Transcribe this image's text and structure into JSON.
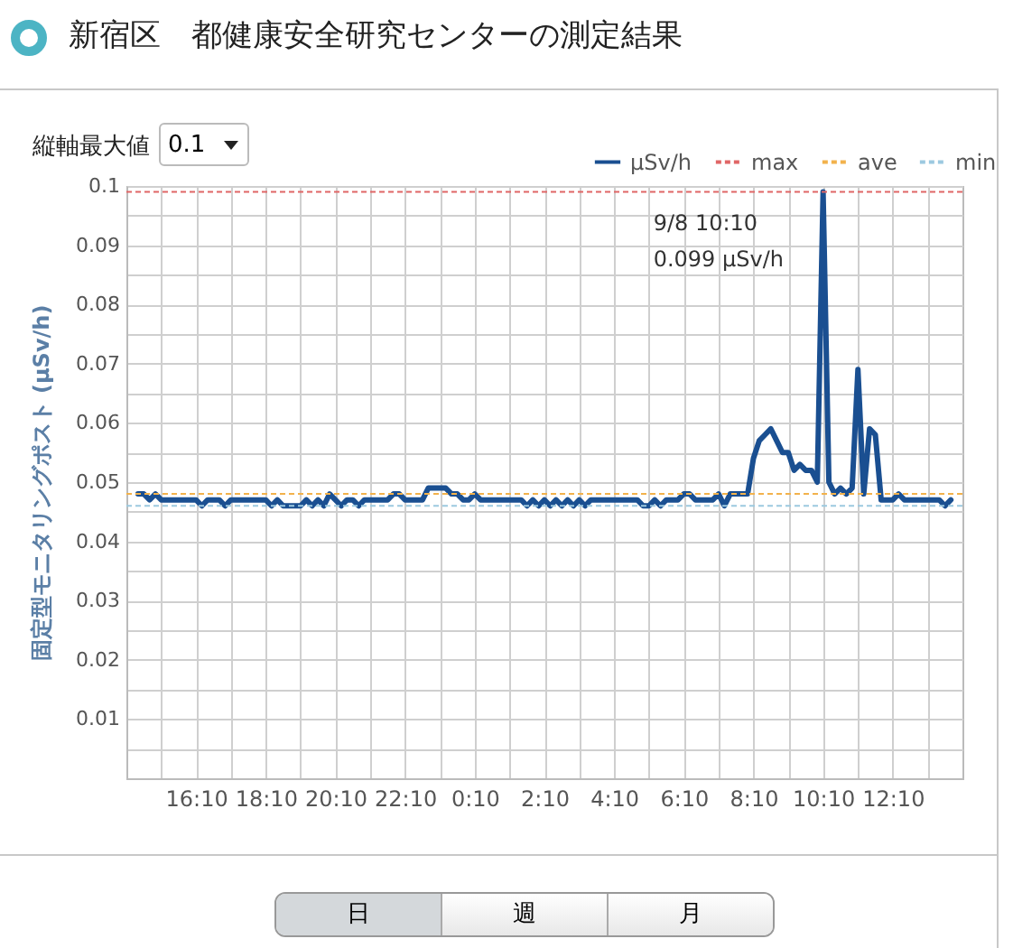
{
  "chart_data": {
    "type": "line",
    "title": "新宿区　都健康安全研究センターの測定結果",
    "ylabel": "固定型モニタリングポスト (μSv/h)",
    "x": [
      "--09-07T14:30",
      "--09-07T14:40",
      "--09-07T14:50",
      "--09-07T15:00",
      "--09-07T15:10",
      "--09-07T16:10",
      "--09-07T16:20",
      "--09-07T16:30",
      "--09-07T16:50",
      "--09-07T17:00",
      "--09-07T17:10",
      "--09-07T18:10",
      "--09-07T18:20",
      "--09-07T18:30",
      "--09-07T18:40",
      "--09-07T19:10",
      "--09-07T19:20",
      "--09-07T19:30",
      "--09-07T19:40",
      "--09-07T19:50",
      "--09-07T20:00",
      "--09-07T20:10",
      "--09-07T20:20",
      "--09-07T20:30",
      "--09-07T20:40",
      "--09-07T20:50",
      "--09-07T21:00",
      "--09-07T21:40",
      "--09-07T21:50",
      "--09-07T22:00",
      "--09-07T22:10",
      "--09-07T22:40",
      "--09-07T22:50",
      "--09-07T23:20",
      "--09-07T23:30",
      "--09-07T23:40",
      "--09-07T23:50",
      "--09-08T00:00",
      "--09-08T00:10",
      "--09-08T00:20",
      "--09-08T01:30",
      "--09-08T01:40",
      "--09-08T01:50",
      "--09-08T02:00",
      "--09-08T02:10",
      "--09-08T02:20",
      "--09-08T02:30",
      "--09-08T02:40",
      "--09-08T02:50",
      "--09-08T03:00",
      "--09-08T03:10",
      "--09-08T03:20",
      "--09-08T03:30",
      "--09-08T04:50",
      "--09-08T05:00",
      "--09-08T05:10",
      "--09-08T05:20",
      "--09-08T05:30",
      "--09-08T05:40",
      "--09-08T06:00",
      "--09-08T06:10",
      "--09-08T06:20",
      "--09-08T06:30",
      "--09-08T07:00",
      "--09-08T07:10",
      "--09-08T07:20",
      "--09-08T07:30",
      "--09-08T08:00",
      "--09-08T08:10",
      "--09-08T08:20",
      "--09-08T08:30",
      "--09-08T08:40",
      "--09-08T08:50",
      "--09-08T09:00",
      "--09-08T09:10",
      "--09-08T09:20",
      "--09-08T09:30",
      "--09-08T09:40",
      "--09-08T09:50",
      "--09-08T10:00",
      "--09-08T10:10",
      "--09-08T10:20",
      "--09-08T10:30",
      "--09-08T10:40",
      "--09-08T10:50",
      "--09-08T11:00",
      "--09-08T11:10",
      "--09-08T11:20",
      "--09-08T11:30",
      "--09-08T11:40",
      "--09-08T11:50",
      "--09-08T12:10",
      "--09-08T12:20",
      "--09-08T12:30",
      "--09-08T13:30",
      "--09-08T13:40",
      "--09-08T13:50"
    ],
    "series": [
      {
        "name": "μSv/h",
        "color": "#1a4f91",
        "values": [
          0.048,
          0.048,
          0.047,
          0.048,
          0.047,
          0.047,
          0.046,
          0.047,
          0.047,
          0.046,
          0.047,
          0.047,
          0.046,
          0.047,
          0.046,
          0.046,
          0.047,
          0.046,
          0.047,
          0.046,
          0.048,
          0.047,
          0.046,
          0.047,
          0.047,
          0.046,
          0.047,
          0.047,
          0.048,
          0.048,
          0.047,
          0.047,
          0.049,
          0.049,
          0.048,
          0.048,
          0.047,
          0.047,
          0.048,
          0.047,
          0.047,
          0.046,
          0.047,
          0.046,
          0.047,
          0.046,
          0.047,
          0.046,
          0.047,
          0.046,
          0.047,
          0.046,
          0.047,
          0.047,
          0.046,
          0.046,
          0.047,
          0.046,
          0.047,
          0.047,
          0.048,
          0.048,
          0.047,
          0.047,
          0.048,
          0.046,
          0.048,
          0.048,
          0.054,
          0.057,
          0.058,
          0.059,
          0.057,
          0.055,
          0.055,
          0.052,
          0.053,
          0.052,
          0.052,
          0.05,
          0.099,
          0.05,
          0.048,
          0.049,
          0.048,
          0.049,
          0.069,
          0.048,
          0.059,
          0.058,
          0.047,
          0.047,
          0.048,
          0.047,
          0.047,
          0.046,
          0.047
        ]
      }
    ],
    "xlim": [
      "--09-07T14:10",
      "--09-08T14:10"
    ],
    "xticks": [
      {
        "value": "--09-07T15:10",
        "label": null
      },
      {
        "value": "--09-07T16:10",
        "label": "16:10"
      },
      {
        "value": "--09-07T17:10",
        "label": null
      },
      {
        "value": "--09-07T18:10",
        "label": "18:10"
      },
      {
        "value": "--09-07T19:10",
        "label": null
      },
      {
        "value": "--09-07T20:10",
        "label": "20:10"
      },
      {
        "value": "--09-07T21:10",
        "label": null
      },
      {
        "value": "--09-07T22:10",
        "label": "22:10"
      },
      {
        "value": "--09-07T23:10",
        "label": null
      },
      {
        "value": "--09-08T00:10",
        "label": "0:10"
      },
      {
        "value": "--09-08T01:10",
        "label": null
      },
      {
        "value": "--09-08T02:10",
        "label": "2:10"
      },
      {
        "value": "--09-08T03:10",
        "label": null
      },
      {
        "value": "--09-08T04:10",
        "label": "4:10"
      },
      {
        "value": "--09-08T05:10",
        "label": null
      },
      {
        "value": "--09-08T06:10",
        "label": "6:10"
      },
      {
        "value": "--09-08T07:10",
        "label": null
      },
      {
        "value": "--09-08T08:10",
        "label": "8:10"
      },
      {
        "value": "--09-08T09:10",
        "label": null
      },
      {
        "value": "--09-08T10:10",
        "label": "10:10"
      },
      {
        "value": "--09-08T11:10",
        "label": null
      },
      {
        "value": "--09-08T12:10",
        "label": "12:10"
      },
      {
        "value": "--09-08T13:10",
        "label": null
      }
    ],
    "ylim": [
      0,
      0.1
    ],
    "yticks": [
      {
        "value": 0.005,
        "label": null
      },
      0.01,
      {
        "value": 0.015,
        "label": null
      },
      0.02,
      {
        "value": 0.025,
        "label": null
      },
      0.03,
      {
        "value": 0.035,
        "label": null
      },
      0.04,
      {
        "value": 0.045,
        "label": null
      },
      0.05,
      {
        "value": 0.055,
        "label": null
      },
      0.06,
      {
        "value": 0.065,
        "label": null
      },
      0.07,
      {
        "value": 0.075,
        "label": null
      },
      0.08,
      {
        "value": 0.085,
        "label": null
      },
      0.09,
      {
        "value": 0.095,
        "label": null
      },
      0.1
    ],
    "ref_lines": [
      {
        "axis": "y",
        "value": 0.099,
        "label": "max",
        "color": "#e06666",
        "line_style": "dashed"
      },
      {
        "axis": "y",
        "value": 0.048,
        "label": "ave",
        "color": "#f2b24c",
        "line_style": "dashed"
      },
      {
        "axis": "y",
        "value": 0.046,
        "label": "min",
        "color": "#9cc9e0",
        "line_style": "dashed"
      }
    ],
    "annotations": [
      {
        "text": "9/8 10:10\n0.099 μSv/h",
        "x": "--09-08T10:10",
        "y": 0.099
      },
      "縦軸最大値",
      "0.1",
      "日",
      "週",
      "月"
    ],
    "grid": true,
    "legend": "top right"
  }
}
